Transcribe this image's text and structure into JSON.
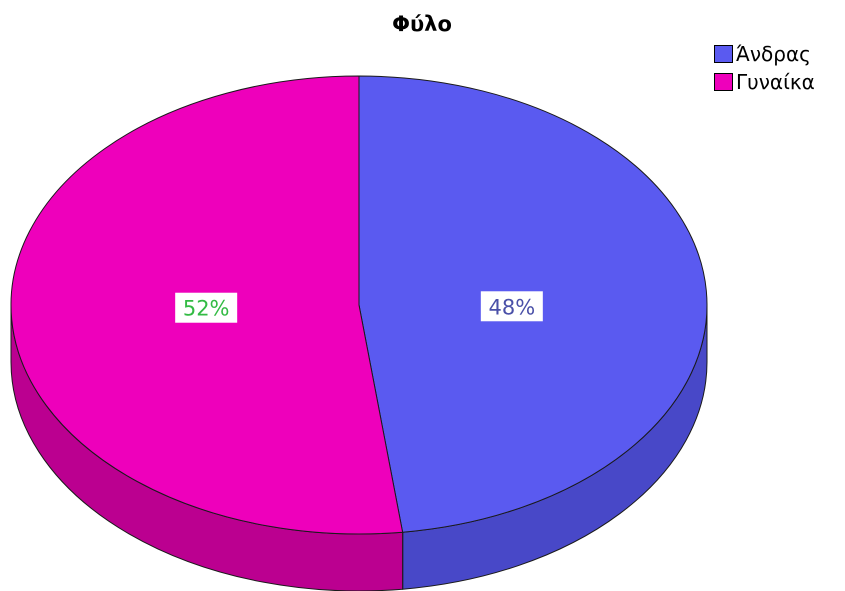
{
  "chart_data": {
    "type": "pie",
    "title": "Φύλο",
    "legend_position": "top-right",
    "slices": [
      {
        "label": "Άνδρας",
        "value": 48,
        "value_label": "48%",
        "color": "#5a5af0",
        "side_color": "#4848c8",
        "label_text_color": "#4a50a8"
      },
      {
        "label": "Γυναίκα",
        "value": 52,
        "value_label": "52%",
        "color": "#ee00bb",
        "side_color": "#bb0090",
        "label_text_color": "#33bb44"
      }
    ]
  }
}
